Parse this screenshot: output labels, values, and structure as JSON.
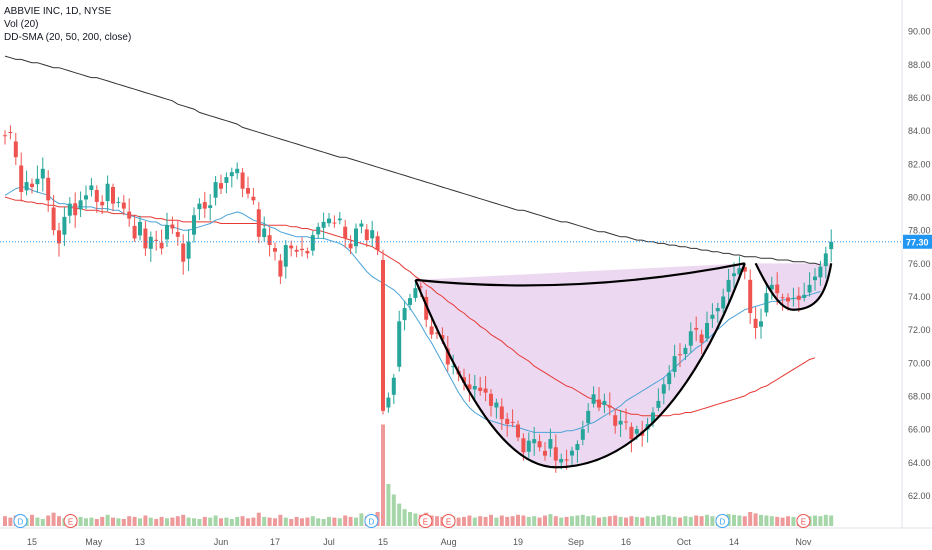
{
  "legend": {
    "title": "ABBVIE INC, 1D, NYSE",
    "volume": "Vol (20)",
    "sma": "DD-SMA (20, 50, 200, close)"
  },
  "price_badge": "77.30",
  "colors": {
    "up": "#26a69a",
    "down": "#ef5350",
    "up_volume": "#a5d6a7",
    "down_volume": "#ef9a9a",
    "sma20": "#4aa3d8",
    "sma50": "#e53935",
    "sma200": "#333333",
    "cup_fill": "#e1bee7",
    "badge": "#2196f3",
    "event_dividend": "#42a5f5",
    "event_earnings": "#ef5350"
  },
  "chart_data": {
    "type": "candlestick",
    "symbol": "ABBVIE INC",
    "interval": "1D",
    "exchange": "NYSE",
    "y_axis": {
      "ticks": [
        "62.00",
        "64.00",
        "66.00",
        "68.00",
        "70.00",
        "72.00",
        "74.00",
        "76.00",
        "78.00",
        "80.00",
        "82.00",
        "84.00",
        "86.00",
        "88.00",
        "90.00"
      ],
      "range": [
        61.0,
        91.4
      ]
    },
    "x_axis": {
      "ticks": [
        {
          "label": "15",
          "date": "2019-04-15"
        },
        {
          "label": "May",
          "date": "2019-05-01"
        },
        {
          "label": "13",
          "date": "2019-05-13"
        },
        {
          "label": "Jun",
          "date": "2019-06-03"
        },
        {
          "label": "17",
          "date": "2019-06-17"
        },
        {
          "label": "Jul",
          "date": "2019-07-01"
        },
        {
          "label": "15",
          "date": "2019-07-15"
        },
        {
          "label": "Aug",
          "date": "2019-08-01"
        },
        {
          "label": "19",
          "date": "2019-08-19"
        },
        {
          "label": "Sep",
          "date": "2019-09-03"
        },
        {
          "label": "16",
          "date": "2019-09-16"
        },
        {
          "label": "Oct",
          "date": "2019-10-01"
        },
        {
          "label": "14",
          "date": "2019-10-14"
        },
        {
          "label": "Nov",
          "date": "2019-11-01"
        }
      ]
    },
    "last_price": 77.3,
    "closes": [
      83.7,
      83.9,
      82.4,
      80.3,
      80.9,
      80.6,
      81.1,
      81.7,
      79.8,
      78.0,
      77.2,
      78.8,
      79.6,
      78.9,
      79.8,
      80.1,
      80.7,
      79.7,
      79.5,
      80.8,
      79.6,
      79.7,
      79.3,
      78.7,
      77.5,
      78.5,
      76.9,
      77.6,
      77.4,
      76.9,
      78.3,
      78.1,
      77.6,
      76.1,
      77.3,
      78.9,
      79.6,
      79.3,
      79.5,
      80.9,
      80.5,
      81.2,
      81.5,
      81.7,
      80.5,
      80.2,
      79.8,
      77.6,
      78.1,
      77.1,
      76.7,
      75.2,
      77.1,
      76.9,
      76.7,
      76.8,
      76.6,
      77.7,
      78.2,
      78.5,
      78.7,
      78.4,
      78.7,
      77.5,
      76.9,
      78.1,
      78.4,
      77.4,
      78.0,
      76.8,
      67.1,
      67.9,
      69.1,
      72.5,
      73.3,
      73.9,
      74.5,
      74.6,
      72.6,
      71.7,
      71.8,
      71.4,
      69.9,
      69.8,
      69.3,
      68.8,
      68.4,
      68.6,
      68.3,
      68.2,
      67.4,
      67.6,
      66.6,
      66.3,
      66.4,
      65.5,
      64.6,
      65.3,
      65.4,
      64.9,
      64.4,
      65.4,
      64.1,
      64.2,
      64.1,
      64.7,
      65.1,
      66.0,
      67.1,
      68.1,
      67.3,
      67.7,
      67.3,
      66.2,
      66.5,
      66.4,
      65.4,
      66.0,
      65.6,
      66.3,
      67.0,
      67.7,
      68.7,
      69.4,
      70.4,
      70.5,
      70.9,
      71.9,
      72.0,
      71.2,
      72.4,
      72.9,
      73.3,
      74.0,
      75.0,
      75.4,
      75.7,
      75.5,
      73.0,
      72.1,
      72.5,
      74.2,
      74.7,
      74.2,
      73.9,
      73.7,
      73.9,
      73.8,
      74.1,
      74.7,
      75.2,
      75.8,
      76.6,
      77.3
    ],
    "sma20": [
      80.1,
      80.3,
      80.5,
      80.6,
      80.6,
      80.4,
      80.3,
      80.2,
      80.1,
      79.8,
      79.6,
      79.6,
      79.5,
      79.4,
      79.4,
      79.4,
      79.4,
      79.3,
      79.3,
      79.3,
      79.2,
      79.2,
      79.0,
      78.9,
      78.8,
      78.7,
      78.6,
      78.5,
      78.5,
      78.3,
      78.3,
      78.2,
      78.1,
      78.0,
      78.0,
      78.1,
      78.2,
      78.3,
      78.4,
      78.6,
      78.7,
      78.9,
      79.0,
      79.1,
      79.0,
      78.8,
      78.6,
      78.5,
      78.4,
      78.2,
      78.1,
      77.9,
      77.8,
      77.7,
      77.6,
      77.6,
      77.6,
      77.5,
      77.5,
      77.5,
      77.4,
      77.3,
      77.2,
      77.0,
      76.7,
      76.3,
      75.9,
      75.5,
      75.2,
      75.0,
      74.8,
      74.6,
      74.4,
      74.1,
      73.7,
      73.3,
      72.8,
      72.3,
      71.7,
      71.2,
      70.6,
      70.0,
      69.4,
      68.8,
      68.2,
      67.7,
      67.3,
      67.0,
      66.8,
      66.6,
      66.5,
      66.4,
      66.3,
      66.2,
      66.2,
      66.1,
      66.0,
      65.9,
      65.8,
      65.8,
      65.8,
      65.8,
      65.8,
      65.8,
      65.9,
      65.9,
      66.0,
      66.1,
      66.3,
      66.4,
      66.6,
      66.8,
      67.0,
      67.2,
      67.4,
      67.7,
      67.9,
      68.1,
      68.3,
      68.5,
      68.7,
      68.9,
      69.1,
      69.4,
      69.7,
      70.0,
      70.3,
      70.6,
      70.9,
      71.1,
      71.4,
      71.7,
      72.0,
      72.3,
      72.6,
      72.8,
      73.0,
      73.2,
      73.3,
      73.4,
      73.5,
      73.6,
      73.7,
      73.7,
      73.8,
      73.8,
      73.9,
      73.9,
      74.0,
      74.1,
      74.2,
      74.3
    ],
    "sma50": [
      80.0,
      79.9,
      79.8,
      79.8,
      79.7,
      79.7,
      79.6,
      79.6,
      79.5,
      79.5,
      79.4,
      79.4,
      79.4,
      79.3,
      79.3,
      79.2,
      79.2,
      79.2,
      79.1,
      79.1,
      79.0,
      79.0,
      79.0,
      78.9,
      78.9,
      78.8,
      78.8,
      78.8,
      78.7,
      78.7,
      78.6,
      78.6,
      78.6,
      78.5,
      78.5,
      78.5,
      78.5,
      78.5,
      78.5,
      78.5,
      78.4,
      78.4,
      78.4,
      78.4,
      78.4,
      78.4,
      78.4,
      78.4,
      78.3,
      78.3,
      78.3,
      78.3,
      78.3,
      78.2,
      78.2,
      78.1,
      78.1,
      78.0,
      78.0,
      77.9,
      77.8,
      77.7,
      77.6,
      77.5,
      77.4,
      77.3,
      77.2,
      77.1,
      77.0,
      76.8,
      76.6,
      76.4,
      76.2,
      76.0,
      75.7,
      75.5,
      75.2,
      75.0,
      74.7,
      74.5,
      74.2,
      74.0,
      73.7,
      73.5,
      73.2,
      73.0,
      72.7,
      72.5,
      72.2,
      72.0,
      71.7,
      71.5,
      71.3,
      71.0,
      70.8,
      70.5,
      70.3,
      70.1,
      69.8,
      69.6,
      69.4,
      69.2,
      69.0,
      68.8,
      68.6,
      68.5,
      68.3,
      68.1,
      67.9,
      67.8,
      67.6,
      67.5,
      67.4,
      67.2,
      67.1,
      67.0,
      66.9,
      66.9,
      66.8,
      66.8,
      66.8,
      66.8,
      66.8,
      66.8,
      66.9,
      66.9,
      67.0,
      67.0,
      67.1,
      67.2,
      67.3,
      67.4,
      67.5,
      67.6,
      67.7,
      67.8,
      67.9,
      68.0,
      68.2,
      68.3,
      68.5,
      68.6,
      68.8,
      69.0,
      69.2,
      69.4,
      69.6,
      69.8,
      70.0,
      70.2,
      70.3
    ],
    "sma200": [
      88.5,
      88.4,
      88.3,
      88.3,
      88.2,
      88.1,
      88.1,
      88.0,
      87.9,
      87.8,
      87.8,
      87.7,
      87.6,
      87.5,
      87.4,
      87.3,
      87.2,
      87.2,
      87.1,
      87.0,
      86.9,
      86.8,
      86.7,
      86.6,
      86.5,
      86.4,
      86.3,
      86.2,
      86.1,
      86.0,
      85.9,
      85.8,
      85.6,
      85.5,
      85.4,
      85.3,
      85.1,
      85.0,
      84.9,
      84.8,
      84.7,
      84.6,
      84.5,
      84.4,
      84.2,
      84.1,
      84.0,
      83.9,
      83.8,
      83.7,
      83.6,
      83.5,
      83.4,
      83.3,
      83.2,
      83.1,
      83.0,
      82.9,
      82.8,
      82.7,
      82.6,
      82.5,
      82.4,
      82.4,
      82.3,
      82.2,
      82.1,
      82.0,
      81.9,
      81.8,
      81.7,
      81.6,
      81.5,
      81.4,
      81.3,
      81.2,
      81.1,
      81.0,
      80.9,
      80.8,
      80.7,
      80.6,
      80.5,
      80.4,
      80.3,
      80.2,
      80.1,
      80.0,
      79.9,
      79.8,
      79.7,
      79.6,
      79.5,
      79.4,
      79.3,
      79.2,
      79.2,
      79.1,
      79.0,
      78.9,
      78.8,
      78.7,
      78.6,
      78.5,
      78.5,
      78.4,
      78.3,
      78.2,
      78.1,
      78.0,
      77.9,
      77.9,
      77.8,
      77.7,
      77.6,
      77.6,
      77.5,
      77.4,
      77.4,
      77.3,
      77.3,
      77.2,
      77.2,
      77.1,
      77.1,
      77.0,
      77.0,
      76.9,
      76.9,
      76.8,
      76.8,
      76.7,
      76.7,
      76.6,
      76.6,
      76.5,
      76.5,
      76.4,
      76.4,
      76.4,
      76.3,
      76.3,
      76.3,
      76.2,
      76.2,
      76.2,
      76.1,
      76.1,
      76.1,
      76.0,
      76.0,
      75.9
    ],
    "volume": [
      1.4,
      1.2,
      1.5,
      1.3,
      1.1,
      1.6,
      1.2,
      1.0,
      1.5,
      1.9,
      1.4,
      1.1,
      1.2,
      1.0,
      1.3,
      1.1,
      1.2,
      1.0,
      1.3,
      1.6,
      1.2,
      1.1,
      1.0,
      1.4,
      1.3,
      1.1,
      1.5,
      1.2,
      1.0,
      1.3,
      1.1,
      1.2,
      1.4,
      1.6,
      1.2,
      1.1,
      1.0,
      1.3,
      1.2,
      1.5,
      1.1,
      1.2,
      1.0,
      1.3,
      1.4,
      1.1,
      1.2,
      1.9,
      1.3,
      1.2,
      1.1,
      1.6,
      1.2,
      1.0,
      1.3,
      1.1,
      1.2,
      1.4,
      1.1,
      1.0,
      1.3,
      1.2,
      1.1,
      1.5,
      1.3,
      1.2,
      1.8,
      1.4,
      1.3,
      2.0,
      14.5,
      6.0,
      4.5,
      3.2,
      2.4,
      2.0,
      1.8,
      1.6,
      1.9,
      1.5,
      1.4,
      1.3,
      1.6,
      1.4,
      1.2,
      1.3,
      1.5,
      1.2,
      1.4,
      1.3,
      1.6,
      1.2,
      1.5,
      1.3,
      1.4,
      1.6,
      1.5,
      1.3,
      1.4,
      1.2,
      1.5,
      1.7,
      1.4,
      1.2,
      1.3,
      1.4,
      1.5,
      1.6,
      1.4,
      1.5,
      1.2,
      1.3,
      1.4,
      1.5,
      1.3,
      1.2,
      1.4,
      1.3,
      1.2,
      1.4,
      1.3,
      1.5,
      1.6,
      1.4,
      1.3,
      1.2,
      1.4,
      1.3,
      1.5,
      1.4,
      1.6,
      1.4,
      1.3,
      1.5,
      1.7,
      1.6,
      1.5,
      1.4,
      2.0,
      1.8,
      1.6,
      1.5,
      1.4,
      1.3,
      1.2,
      1.4,
      1.3,
      1.2,
      1.3,
      1.4,
      1.5,
      1.4,
      1.6,
      1.5
    ],
    "events": [
      {
        "type": "dividend",
        "label": "D",
        "date": "2019-04-12"
      },
      {
        "type": "earnings",
        "label": "E",
        "date": "2019-04-25"
      },
      {
        "type": "dividend",
        "label": "D",
        "date": "2019-07-12"
      },
      {
        "type": "earnings",
        "label": "E",
        "date": "2019-07-26"
      },
      {
        "type": "earnings",
        "label": "E",
        "date": "2019-08-01"
      },
      {
        "type": "dividend",
        "label": "D",
        "date": "2019-10-11"
      },
      {
        "type": "earnings",
        "label": "E",
        "date": "2019-11-01"
      }
    ],
    "annotations": [
      {
        "type": "cup",
        "start": 75.0,
        "bottom": 63.7,
        "end": 76.0
      },
      {
        "type": "handle",
        "start": 76.0,
        "bottom": 73.2,
        "end": 76.0
      },
      {
        "type": "rim",
        "from": 75.0,
        "to": 76.0
      }
    ]
  }
}
